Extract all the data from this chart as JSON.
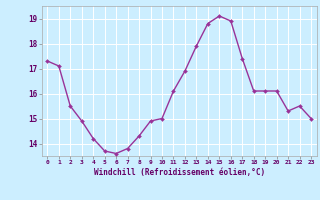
{
  "x": [
    0,
    1,
    2,
    3,
    4,
    5,
    6,
    7,
    8,
    9,
    10,
    11,
    12,
    13,
    14,
    15,
    16,
    17,
    18,
    19,
    20,
    21,
    22,
    23
  ],
  "y": [
    17.3,
    17.1,
    15.5,
    14.9,
    14.2,
    13.7,
    13.6,
    13.8,
    14.3,
    14.9,
    15.0,
    16.1,
    16.9,
    17.9,
    18.8,
    19.1,
    18.9,
    17.4,
    16.1,
    16.1,
    16.1,
    15.3,
    15.5,
    15.0
  ],
  "line_color": "#993399",
  "marker_color": "#993399",
  "bg_color": "#cceeff",
  "grid_color": "#ffffff",
  "xlabel": "Windchill (Refroidissement éolien,°C)",
  "xlabel_color": "#660066",
  "tick_color": "#660066",
  "ylim": [
    13.5,
    19.5
  ],
  "yticks": [
    14,
    15,
    16,
    17,
    18,
    19
  ],
  "xlim": [
    -0.5,
    23.5
  ],
  "xticks": [
    0,
    1,
    2,
    3,
    4,
    5,
    6,
    7,
    8,
    9,
    10,
    11,
    12,
    13,
    14,
    15,
    16,
    17,
    18,
    19,
    20,
    21,
    22,
    23
  ],
  "xtick_labels": [
    "0",
    "1",
    "2",
    "3",
    "4",
    "5",
    "6",
    "7",
    "8",
    "9",
    "10",
    "11",
    "12",
    "13",
    "14",
    "15",
    "16",
    "17",
    "18",
    "19",
    "20",
    "21",
    "22",
    "23"
  ],
  "linewidth": 1.0,
  "markersize": 2.0
}
